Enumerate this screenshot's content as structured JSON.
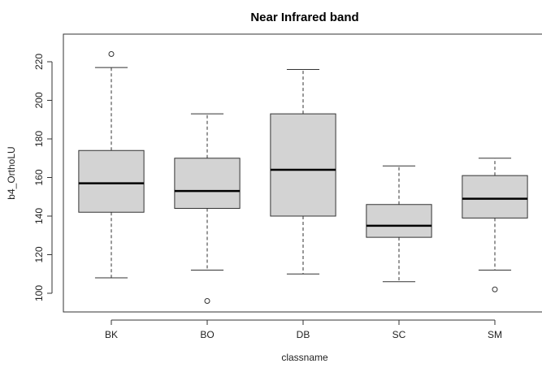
{
  "chart_data": {
    "type": "boxplot",
    "title": "Near Infrared band",
    "xlabel": "classname",
    "ylabel": "b4_OrthoLU",
    "ylim": [
      90,
      230
    ],
    "yticks": [
      100,
      120,
      140,
      160,
      180,
      200,
      220
    ],
    "categories": [
      "BK",
      "BO",
      "DB",
      "SC",
      "SM"
    ],
    "boxes": [
      {
        "category": "BK",
        "whisker_low": 108,
        "q1": 142,
        "median": 157,
        "q3": 174,
        "whisker_high": 217,
        "outliers": [
          224
        ]
      },
      {
        "category": "BO",
        "whisker_low": 112,
        "q1": 144,
        "median": 153,
        "q3": 170,
        "whisker_high": 193,
        "outliers": [
          96
        ]
      },
      {
        "category": "DB",
        "whisker_low": 110,
        "q1": 140,
        "median": 164,
        "q3": 193,
        "whisker_high": 216,
        "outliers": []
      },
      {
        "category": "SC",
        "whisker_low": 106,
        "q1": 129,
        "median": 135,
        "q3": 146,
        "whisker_high": 166,
        "outliers": []
      },
      {
        "category": "SM",
        "whisker_low": 112,
        "q1": 139,
        "median": 149,
        "q3": 161,
        "whisker_high": 170,
        "outliers": [
          102
        ]
      }
    ],
    "box_fill": "#d3d3d3",
    "box_stroke": "#333333",
    "grid": false
  }
}
